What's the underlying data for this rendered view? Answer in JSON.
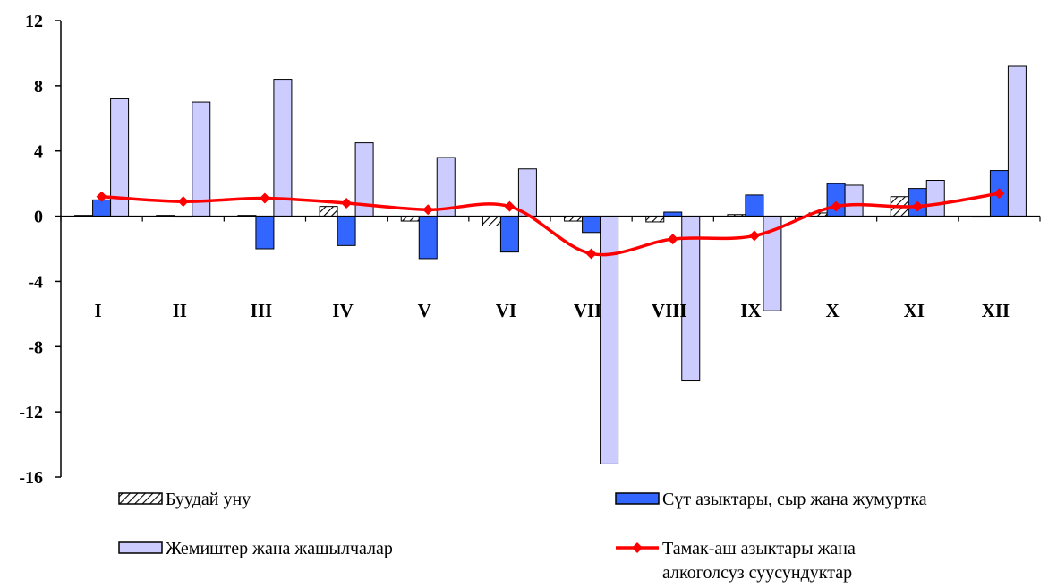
{
  "chart_data": {
    "type": "bar",
    "categories": [
      "I",
      "II",
      "III",
      "IV",
      "V",
      "VI",
      "VII",
      "VIII",
      "IX",
      "X",
      "XI",
      "XII"
    ],
    "series": [
      {
        "name": "Буудай уну",
        "type": "bar",
        "pattern": "hatched",
        "values": [
          0.05,
          0.05,
          0.05,
          0.6,
          -0.3,
          -0.6,
          -0.3,
          -0.35,
          0.1,
          0.2,
          1.2,
          -0.05
        ]
      },
      {
        "name": "Сүт азыктары, сыр жана жумуртка",
        "type": "bar",
        "color": "#3366ff",
        "values": [
          1.0,
          -0.05,
          -2.0,
          -1.8,
          -2.6,
          -2.2,
          -1.0,
          0.25,
          1.3,
          2.0,
          1.7,
          2.8
        ]
      },
      {
        "name": "Жемиштер жана жашылчалар",
        "type": "bar",
        "color": "#ccccff",
        "values": [
          7.2,
          7.0,
          8.4,
          4.5,
          3.6,
          2.9,
          -15.2,
          -10.1,
          -5.8,
          1.9,
          2.2,
          9.2
        ]
      },
      {
        "name_lines": [
          "Тамак-аш азыктары жана",
          "алкоголсуз суусундуктар"
        ],
        "type": "line",
        "color": "#ff0000",
        "values": [
          1.2,
          0.9,
          1.1,
          0.8,
          0.4,
          0.6,
          -2.3,
          -1.4,
          -1.2,
          0.6,
          0.6,
          1.4
        ]
      }
    ],
    "y_ticks": [
      "12",
      "8",
      "4",
      "0",
      "-4",
      "-8",
      "-12",
      "-16"
    ],
    "ylim": [
      -16,
      12
    ],
    "title": "",
    "xlabel": "",
    "ylabel": "",
    "legend_position": "bottom",
    "grid": false
  }
}
